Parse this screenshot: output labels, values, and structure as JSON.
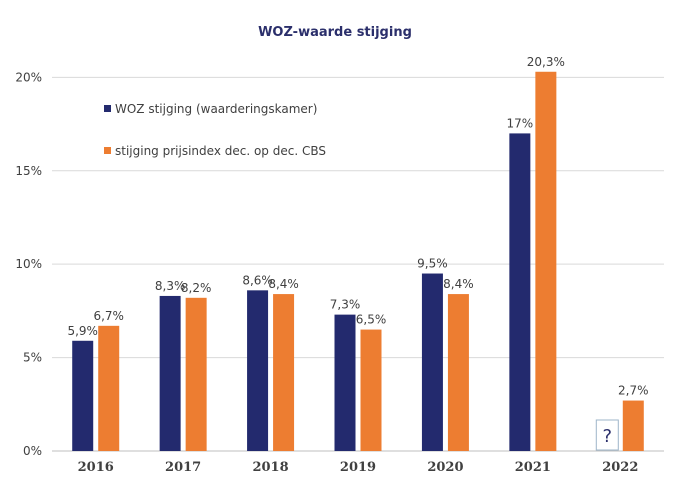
{
  "chart_data": {
    "type": "bar",
    "title": "WOZ-waarde stijging",
    "xlabel": "",
    "ylabel": "",
    "ylim": [
      0,
      22
    ],
    "yticks": [
      {
        "value": 0,
        "label": "0%"
      },
      {
        "value": 5,
        "label": "5%"
      },
      {
        "value": 10,
        "label": "10%"
      },
      {
        "value": 15,
        "label": "15%"
      },
      {
        "value": 20,
        "label": "20%"
      }
    ],
    "grid": true,
    "legend_position": "top-left",
    "categories": [
      "2016",
      "2017",
      "2018",
      "2019",
      "2020",
      "2021",
      "2022"
    ],
    "series": [
      {
        "name": "WOZ stijging (waarderingskamer)",
        "color": "#232a6e",
        "values": [
          5.9,
          8.3,
          8.6,
          7.3,
          9.5,
          17,
          null
        ],
        "labels": [
          "5,9%",
          "8,3%",
          "8,6%",
          "7,3%",
          "9,5%",
          "17%",
          null
        ]
      },
      {
        "name": "stijging prijsindex dec. op dec. CBS",
        "color": "#ed7d31",
        "values": [
          6.7,
          8.2,
          8.4,
          6.5,
          8.4,
          20.3,
          2.7
        ],
        "labels": [
          "6,7%",
          "8,2%",
          "8,4%",
          "6,5%",
          "8,4%",
          "20,3%",
          "2,7%"
        ]
      }
    ],
    "annotations": [
      {
        "category": "2022",
        "series": 0,
        "text": "?"
      }
    ]
  },
  "colors": {
    "title": "#2b2f6b",
    "grid": "#d9d9d9",
    "axis": "#bfbfbf",
    "text": "#404040"
  }
}
